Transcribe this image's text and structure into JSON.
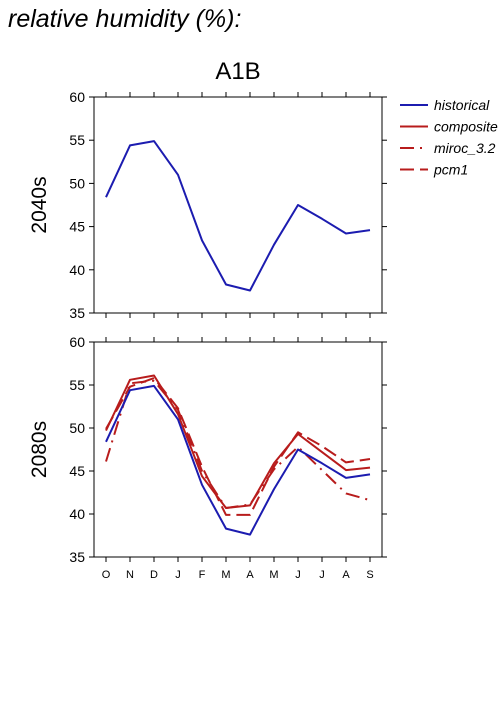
{
  "page_title": "relative humidity (%):",
  "chart_title": "A1B",
  "colors": {
    "historical": "#1c1cb0",
    "scenario": "#b81c1c",
    "axis": "#000000"
  },
  "legend": [
    {
      "label": "historical",
      "style": "solid",
      "color": "#1c1cb0"
    },
    {
      "label": "composite",
      "style": "solid",
      "color": "#b81c1c"
    },
    {
      "label": "miroc_3.2",
      "style": "dashdot",
      "color": "#b81c1c"
    },
    {
      "label": "pcm1",
      "style": "dashed",
      "color": "#b81c1c"
    }
  ],
  "chart_data": [
    {
      "type": "line",
      "panel": "2040s",
      "ylabel": "2040s",
      "ylim": [
        35,
        60
      ],
      "yticks": [
        35,
        40,
        45,
        50,
        55,
        60
      ],
      "categories": [
        "O",
        "N",
        "D",
        "J",
        "F",
        "M",
        "A",
        "M",
        "J",
        "J",
        "A",
        "S"
      ],
      "series": [
        {
          "name": "historical",
          "style": "solid",
          "color": "#1c1cb0",
          "values": [
            48.4,
            54.4,
            54.9,
            51.0,
            43.4,
            38.3,
            37.6,
            42.9,
            47.5,
            45.9,
            44.2,
            44.6
          ]
        }
      ]
    },
    {
      "type": "line",
      "panel": "2080s",
      "ylabel": "2080s",
      "ylim": [
        35,
        60
      ],
      "yticks": [
        35,
        40,
        45,
        50,
        55,
        60
      ],
      "categories": [
        "O",
        "N",
        "D",
        "J",
        "F",
        "M",
        "A",
        "M",
        "J",
        "J",
        "A",
        "S"
      ],
      "series": [
        {
          "name": "historical",
          "style": "solid",
          "color": "#1c1cb0",
          "values": [
            48.4,
            54.4,
            54.9,
            51.0,
            43.4,
            38.3,
            37.6,
            42.9,
            47.5,
            45.9,
            44.2,
            44.6
          ]
        },
        {
          "name": "composite",
          "style": "solid",
          "color": "#b81c1c",
          "values": [
            49.7,
            55.6,
            56.1,
            51.6,
            44.4,
            40.7,
            41.0,
            45.9,
            49.3,
            47.2,
            45.1,
            45.4
          ]
        },
        {
          "name": "miroc_3.2",
          "style": "dashdot",
          "color": "#b81c1c",
          "values": [
            46.1,
            55.2,
            55.5,
            52.1,
            45.0,
            40.7,
            41.1,
            45.2,
            47.8,
            45.1,
            42.4,
            41.6
          ]
        },
        {
          "name": "pcm1",
          "style": "dashed",
          "color": "#b81c1c",
          "values": [
            49.9,
            54.8,
            55.8,
            52.3,
            45.5,
            39.9,
            39.9,
            45.5,
            49.5,
            47.9,
            46.0,
            46.4
          ]
        }
      ]
    }
  ]
}
